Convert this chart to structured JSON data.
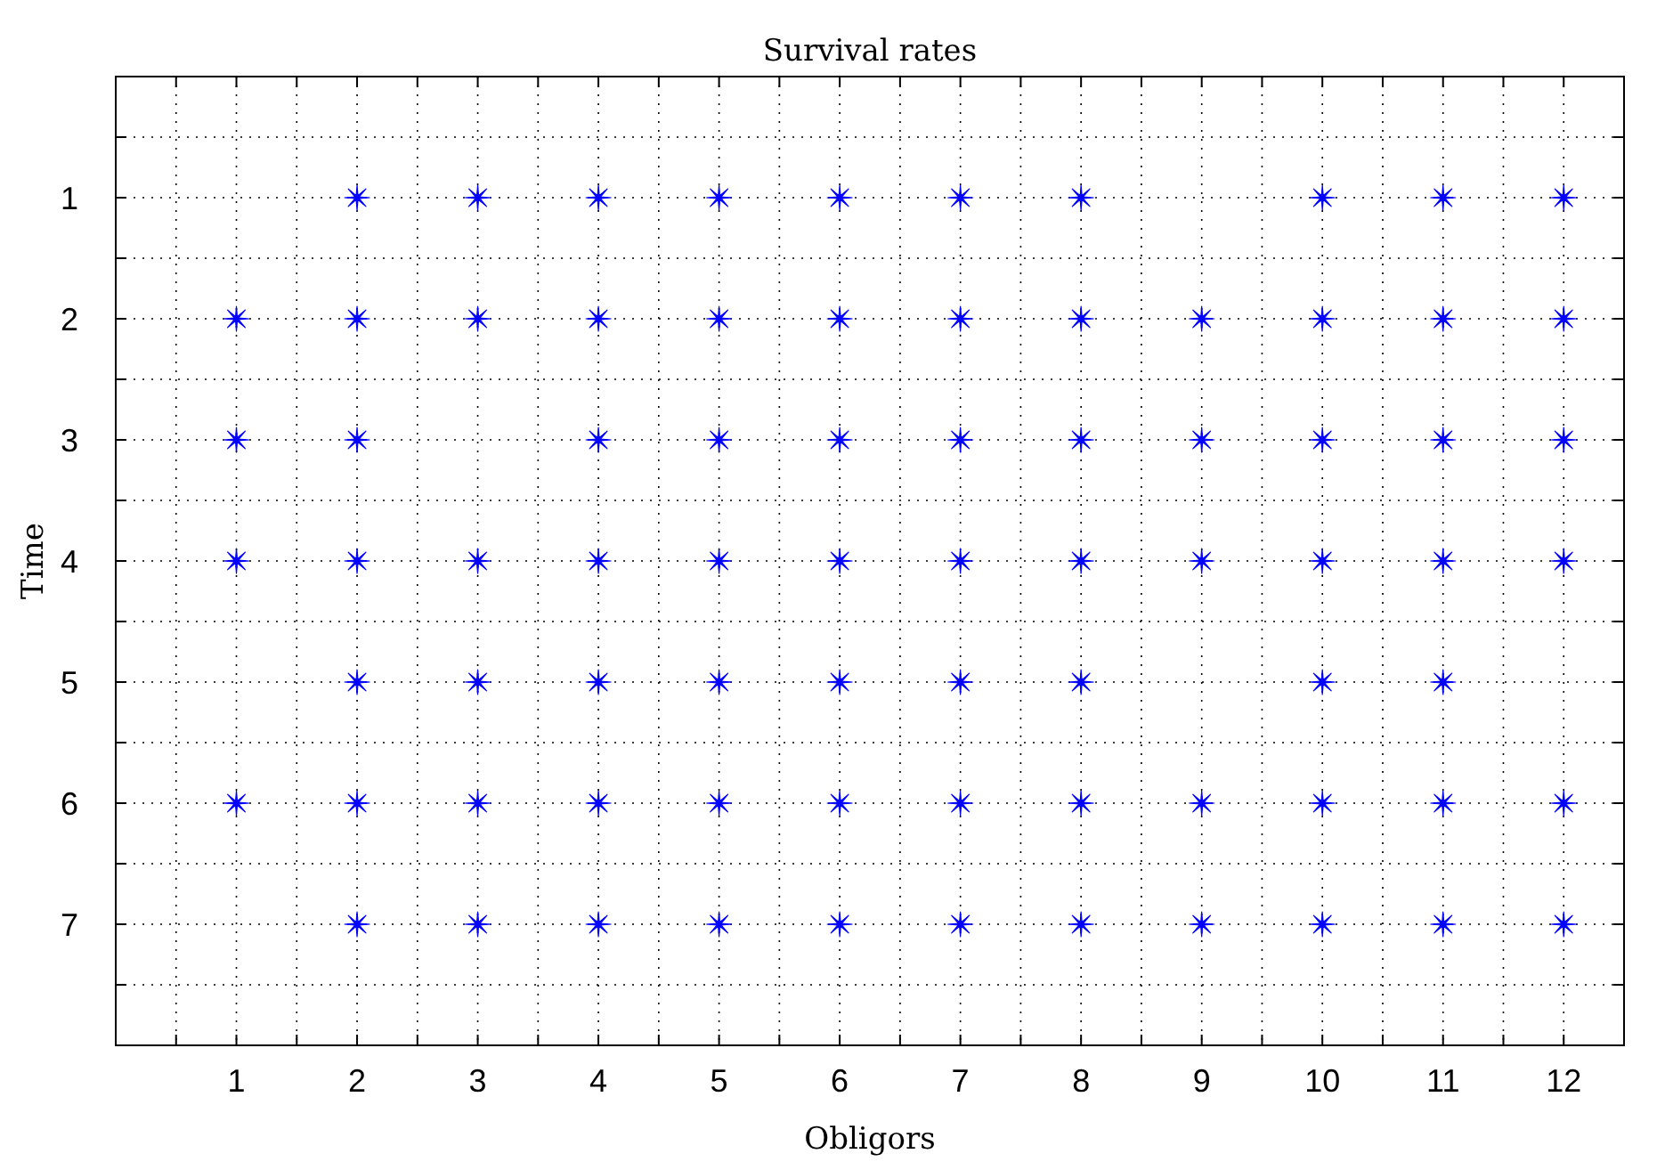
{
  "chart_data": {
    "type": "scatter",
    "title": "Survival rates",
    "xlabel": "Obligors",
    "ylabel": "Time",
    "xlim": [
      0,
      12.5
    ],
    "ylim": [
      8,
      0
    ],
    "xticks": [
      {
        "value": 0.5,
        "label": null
      },
      1,
      {
        "value": 1.5,
        "label": null
      },
      2,
      {
        "value": 2.5,
        "label": null
      },
      3,
      {
        "value": 3.5,
        "label": null
      },
      4,
      {
        "value": 4.5,
        "label": null
      },
      5,
      {
        "value": 5.5,
        "label": null
      },
      6,
      {
        "value": 6.5,
        "label": null
      },
      7,
      {
        "value": 7.5,
        "label": null
      },
      8,
      {
        "value": 8.5,
        "label": null
      },
      9,
      {
        "value": 9.5,
        "label": null
      },
      10,
      {
        "value": 10.5,
        "label": null
      },
      11,
      {
        "value": 11.5,
        "label": null
      },
      12
    ],
    "yticks": [
      {
        "value": 0.5,
        "label": null
      },
      1,
      {
        "value": 1.5,
        "label": null
      },
      2,
      {
        "value": 2.5,
        "label": null
      },
      3,
      {
        "value": 3.5,
        "label": null
      },
      4,
      {
        "value": 4.5,
        "label": null
      },
      5,
      {
        "value": 5.5,
        "label": null
      },
      6,
      {
        "value": 6.5,
        "label": null
      },
      7,
      {
        "value": 7.5,
        "label": null
      }
    ],
    "grid": true,
    "marker": "star",
    "series": [
      {
        "color": "#0000ff",
        "x": [
          2,
          3,
          4,
          5,
          6,
          7,
          8,
          10,
          11,
          12,
          1,
          2,
          3,
          4,
          5,
          6,
          7,
          8,
          9,
          10,
          11,
          12,
          1,
          2,
          4,
          5,
          6,
          7,
          8,
          9,
          10,
          11,
          12,
          1,
          2,
          3,
          4,
          5,
          6,
          7,
          8,
          9,
          10,
          11,
          12,
          2,
          3,
          4,
          5,
          6,
          7,
          8,
          10,
          11,
          1,
          2,
          3,
          4,
          5,
          6,
          7,
          8,
          9,
          10,
          11,
          12,
          2,
          3,
          4,
          5,
          6,
          7,
          8,
          9,
          10,
          11,
          12
        ],
        "values": [
          1,
          1,
          1,
          1,
          1,
          1,
          1,
          1,
          1,
          1,
          2,
          2,
          2,
          2,
          2,
          2,
          2,
          2,
          2,
          2,
          2,
          2,
          3,
          3,
          3,
          3,
          3,
          3,
          3,
          3,
          3,
          3,
          3,
          4,
          4,
          4,
          4,
          4,
          4,
          4,
          4,
          4,
          4,
          4,
          4,
          5,
          5,
          5,
          5,
          5,
          5,
          5,
          5,
          5,
          6,
          6,
          6,
          6,
          6,
          6,
          6,
          6,
          6,
          6,
          6,
          6,
          7,
          7,
          7,
          7,
          7,
          7,
          7,
          7,
          7,
          7,
          7
        ]
      }
    ]
  }
}
